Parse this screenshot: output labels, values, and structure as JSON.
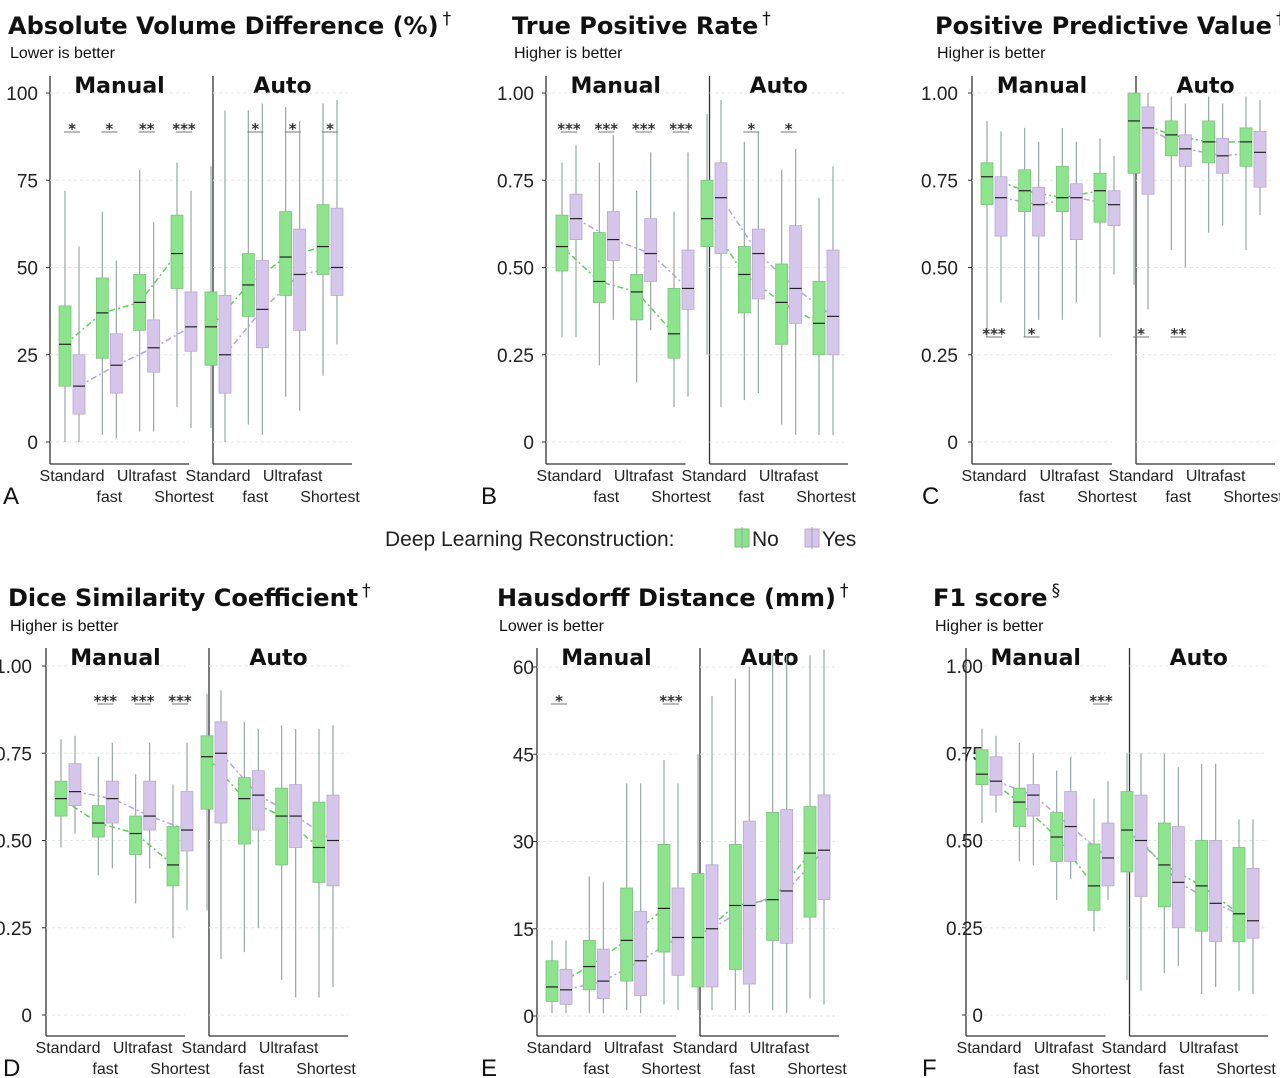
{
  "legend": {
    "title": "Deep Learning Reconstruction:",
    "items": [
      "No",
      "Yes"
    ]
  },
  "colors": {
    "no": "#8ce58c",
    "yes": "#d7c6ec",
    "no_line": "#5fcf5f",
    "yes_line": "#b9a3dd",
    "whisker": "#9aa7a7",
    "grid": "#e6e6e6"
  },
  "chart_data": [
    {
      "panel": "A",
      "type": "box",
      "title": "Absolute Volume Difference (%)",
      "title_mark": "†",
      "subtitle": "Lower is better",
      "groups": [
        "Manual",
        "Auto"
      ],
      "categories": [
        "Standard",
        "fast",
        "Ultrafast",
        "Shortest"
      ],
      "category_rows": [
        0,
        1,
        0,
        1
      ],
      "ylim": [
        0,
        100
      ],
      "yticks": [
        0,
        25,
        50,
        75,
        100
      ],
      "ytick_labels": [
        "0",
        "25",
        "50",
        "75",
        "100"
      ],
      "series": [
        {
          "name": "No",
          "boxes": [
            [
              0,
              16,
              28,
              39,
              72
            ],
            [
              2,
              24,
              37,
              47,
              66
            ],
            [
              3,
              32,
              40,
              48,
              78
            ],
            [
              10,
              44,
              54,
              65,
              80
            ],
            [
              4,
              22,
              33,
              43,
              79
            ],
            [
              5,
              36,
              45,
              54,
              95
            ],
            [
              13,
              42,
              53,
              66,
              96
            ],
            [
              19,
              48,
              56,
              68,
              97
            ]
          ]
        },
        {
          "name": "Yes",
          "boxes": [
            [
              0,
              8,
              16,
              25,
              56
            ],
            [
              1,
              14,
              22,
              31,
              52
            ],
            [
              3,
              20,
              27,
              35,
              63
            ],
            [
              4,
              26,
              33,
              43,
              72
            ],
            [
              0,
              14,
              25,
              42,
              95
            ],
            [
              2,
              27,
              38,
              52,
              97
            ],
            [
              9,
              32,
              48,
              61,
              92
            ],
            [
              28,
              42,
              50,
              67,
              98
            ]
          ]
        }
      ],
      "significance": [
        "*",
        "*",
        "**",
        "***",
        "",
        "*",
        "*",
        "*"
      ]
    },
    {
      "panel": "B",
      "type": "box",
      "title": "True Positive Rate",
      "title_mark": "†",
      "subtitle": "Higher is better",
      "groups": [
        "Manual",
        "Auto"
      ],
      "categories": [
        "Standard",
        "fast",
        "Ultrafast",
        "Shortest"
      ],
      "category_rows": [
        0,
        1,
        0,
        1
      ],
      "ylim": [
        0,
        1
      ],
      "yticks": [
        0,
        0.25,
        0.5,
        0.75,
        1
      ],
      "ytick_labels": [
        "0",
        "0.25",
        "0.50",
        "0.75",
        "1.00"
      ],
      "series": [
        {
          "name": "No",
          "boxes": [
            [
              0.3,
              0.49,
              0.56,
              0.65,
              0.8
            ],
            [
              0.22,
              0.4,
              0.46,
              0.6,
              0.8
            ],
            [
              0.17,
              0.35,
              0.43,
              0.48,
              0.72
            ],
            [
              0.1,
              0.24,
              0.31,
              0.44,
              0.66
            ],
            [
              0.25,
              0.56,
              0.64,
              0.75,
              0.94
            ],
            [
              0.12,
              0.37,
              0.48,
              0.56,
              0.86
            ],
            [
              0.05,
              0.28,
              0.4,
              0.51,
              0.78
            ],
            [
              0.02,
              0.25,
              0.34,
              0.46,
              0.7
            ]
          ]
        },
        {
          "name": "Yes",
          "boxes": [
            [
              0.3,
              0.58,
              0.64,
              0.71,
              0.85
            ],
            [
              0.35,
              0.52,
              0.58,
              0.66,
              0.88
            ],
            [
              0.32,
              0.46,
              0.54,
              0.64,
              0.83
            ],
            [
              0.13,
              0.38,
              0.44,
              0.55,
              0.83
            ],
            [
              0.1,
              0.54,
              0.7,
              0.8,
              0.98
            ],
            [
              0.14,
              0.41,
              0.54,
              0.61,
              0.89
            ],
            [
              0.02,
              0.34,
              0.44,
              0.62,
              0.84
            ],
            [
              0.02,
              0.25,
              0.36,
              0.55,
              0.79
            ]
          ]
        }
      ],
      "significance": [
        "***",
        "***",
        "***",
        "***",
        "",
        "*",
        "*",
        ""
      ]
    },
    {
      "panel": "C",
      "type": "box",
      "title": "Positive Predictive Value",
      "title_mark": "†",
      "subtitle": "Higher is better",
      "groups": [
        "Manual",
        "Auto"
      ],
      "categories": [
        "Standard",
        "fast",
        "Ultrafast",
        "Shortest"
      ],
      "category_rows": [
        0,
        1,
        0,
        1
      ],
      "ylim": [
        0,
        1
      ],
      "yticks": [
        0,
        0.25,
        0.5,
        0.75,
        1
      ],
      "ytick_labels": [
        "0",
        "0.25",
        "0.50",
        "0.75",
        "1.00"
      ],
      "series": [
        {
          "name": "No",
          "boxes": [
            [
              0.3,
              0.68,
              0.76,
              0.8,
              0.92
            ],
            [
              0.3,
              0.66,
              0.72,
              0.78,
              0.9
            ],
            [
              0.35,
              0.66,
              0.7,
              0.79,
              0.9
            ],
            [
              0.3,
              0.63,
              0.72,
              0.77,
              0.87
            ],
            [
              0.45,
              0.77,
              0.92,
              1.0,
              1.0
            ],
            [
              0.55,
              0.82,
              0.88,
              0.92,
              0.99
            ],
            [
              0.6,
              0.8,
              0.86,
              0.92,
              0.99
            ],
            [
              0.55,
              0.79,
              0.86,
              0.9,
              0.99
            ]
          ]
        },
        {
          "name": "Yes",
          "boxes": [
            [
              0.4,
              0.59,
              0.7,
              0.76,
              0.89
            ],
            [
              0.35,
              0.59,
              0.68,
              0.73,
              0.86
            ],
            [
              0.4,
              0.58,
              0.7,
              0.74,
              0.86
            ],
            [
              0.48,
              0.62,
              0.68,
              0.72,
              0.82
            ],
            [
              0.38,
              0.71,
              0.9,
              0.96,
              1.0
            ],
            [
              0.5,
              0.79,
              0.84,
              0.88,
              0.97
            ],
            [
              0.62,
              0.77,
              0.82,
              0.87,
              0.97
            ],
            [
              0.65,
              0.73,
              0.83,
              0.89,
              0.98
            ]
          ]
        }
      ],
      "significance": [
        "***",
        "*",
        "",
        "",
        "*",
        "**",
        "",
        ""
      ]
    },
    {
      "panel": "D",
      "type": "box",
      "title": "Dice Similarity Coefficient",
      "title_mark": "†",
      "subtitle": "Higher is better",
      "groups": [
        "Manual",
        "Auto"
      ],
      "categories": [
        "Standard",
        "fast",
        "Ultrafast",
        "Shortest"
      ],
      "category_rows": [
        0,
        1,
        0,
        1
      ],
      "ylim": [
        0,
        1
      ],
      "yticks": [
        0,
        0.25,
        0.5,
        0.75,
        1
      ],
      "ytick_labels": [
        "0",
        "0.25",
        "0.50",
        "0.75",
        "1.00"
      ],
      "series": [
        {
          "name": "No",
          "boxes": [
            [
              0.48,
              0.57,
              0.62,
              0.67,
              0.79
            ],
            [
              0.4,
              0.51,
              0.55,
              0.6,
              0.74
            ],
            [
              0.32,
              0.46,
              0.52,
              0.57,
              0.69
            ],
            [
              0.22,
              0.37,
              0.43,
              0.54,
              0.66
            ],
            [
              0.3,
              0.59,
              0.74,
              0.8,
              0.92
            ],
            [
              0.18,
              0.49,
              0.62,
              0.68,
              0.84
            ],
            [
              0.1,
              0.43,
              0.57,
              0.65,
              0.83
            ],
            [
              0.05,
              0.38,
              0.48,
              0.61,
              0.82
            ]
          ]
        },
        {
          "name": "Yes",
          "boxes": [
            [
              0.52,
              0.6,
              0.64,
              0.72,
              0.8
            ],
            [
              0.42,
              0.55,
              0.62,
              0.67,
              0.78
            ],
            [
              0.42,
              0.53,
              0.57,
              0.67,
              0.78
            ],
            [
              0.3,
              0.47,
              0.53,
              0.64,
              0.78
            ],
            [
              0.16,
              0.55,
              0.75,
              0.84,
              0.93
            ],
            [
              0.25,
              0.53,
              0.63,
              0.7,
              0.82
            ],
            [
              0.05,
              0.48,
              0.57,
              0.66,
              0.82
            ],
            [
              0.08,
              0.37,
              0.5,
              0.63,
              0.83
            ]
          ]
        }
      ],
      "significance": [
        "",
        "***",
        "***",
        "***",
        "",
        "",
        "",
        ""
      ]
    },
    {
      "panel": "E",
      "type": "box",
      "title": "Hausdorff Distance (mm)",
      "title_mark": "†",
      "subtitle": "Lower is better",
      "groups": [
        "Manual",
        "Auto"
      ],
      "categories": [
        "Standard",
        "fast",
        "Ultrafast",
        "Shortest"
      ],
      "category_rows": [
        0,
        1,
        0,
        1
      ],
      "ylim": [
        0,
        60
      ],
      "yticks": [
        0,
        15,
        30,
        45,
        60
      ],
      "ytick_labels": [
        "0",
        "15",
        "30",
        "45",
        "60"
      ],
      "series": [
        {
          "name": "No",
          "boxes": [
            [
              0.5,
              2.5,
              5,
              9.5,
              13
            ],
            [
              0.5,
              4.5,
              8.5,
              13,
              24
            ],
            [
              1,
              6,
              13,
              22,
              40
            ],
            [
              2,
              11,
              18.5,
              29.5,
              44
            ],
            [
              1,
              5,
              13.5,
              24.5,
              45
            ],
            [
              1,
              8,
              19,
              29.5,
              58
            ],
            [
              1,
              13,
              20,
              35,
              62
            ],
            [
              3,
              17,
              28,
              36,
              62
            ]
          ]
        },
        {
          "name": "Yes",
          "boxes": [
            [
              0.5,
              2,
              4.5,
              8,
              13
            ],
            [
              0.5,
              3,
              6,
              11.5,
              23
            ],
            [
              0.5,
              3.5,
              9.5,
              18,
              40
            ],
            [
              1,
              7,
              13.5,
              22,
              40
            ],
            [
              1,
              5,
              15,
              26,
              55
            ],
            [
              0.5,
              5.5,
              19,
              33.5,
              60
            ],
            [
              0.5,
              12.5,
              21.5,
              35.5,
              62
            ],
            [
              2,
              20,
              28.5,
              38,
              63
            ]
          ]
        }
      ],
      "significance": [
        "*",
        "",
        "",
        "***",
        "",
        "",
        "",
        ""
      ]
    },
    {
      "panel": "F",
      "type": "box",
      "title": "F1 score",
      "title_mark": "§",
      "subtitle": "Higher is better",
      "groups": [
        "Manual",
        "Auto"
      ],
      "categories": [
        "Standard",
        "fast",
        "Ultrafast",
        "Shortest"
      ],
      "category_rows": [
        0,
        1,
        0,
        1
      ],
      "ylim": [
        0,
        1
      ],
      "yticks": [
        0,
        0.25,
        0.5,
        0.75,
        1
      ],
      "ytick_labels": [
        "0",
        "0.25",
        "0.50",
        "0.75",
        "1.00"
      ],
      "series": [
        {
          "name": "No",
          "boxes": [
            [
              0.55,
              0.66,
              0.69,
              0.76,
              0.82
            ],
            [
              0.44,
              0.54,
              0.61,
              0.65,
              0.78
            ],
            [
              0.33,
              0.44,
              0.51,
              0.58,
              0.7
            ],
            [
              0.24,
              0.3,
              0.37,
              0.49,
              0.62
            ],
            [
              0.1,
              0.41,
              0.53,
              0.64,
              0.75
            ],
            [
              0.12,
              0.31,
              0.43,
              0.55,
              0.75
            ],
            [
              0.06,
              0.24,
              0.37,
              0.5,
              0.72
            ],
            [
              0.07,
              0.21,
              0.29,
              0.48,
              0.56
            ]
          ]
        },
        {
          "name": "Yes",
          "boxes": [
            [
              0.58,
              0.63,
              0.67,
              0.74,
              0.8
            ],
            [
              0.43,
              0.57,
              0.63,
              0.66,
              0.75
            ],
            [
              0.39,
              0.44,
              0.54,
              0.64,
              0.74
            ],
            [
              0.33,
              0.37,
              0.45,
              0.55,
              0.67
            ],
            [
              0.07,
              0.34,
              0.5,
              0.63,
              0.75
            ],
            [
              0.14,
              0.25,
              0.38,
              0.54,
              0.71
            ],
            [
              0.08,
              0.21,
              0.32,
              0.5,
              0.72
            ],
            [
              0.06,
              0.22,
              0.27,
              0.42,
              0.56
            ]
          ]
        }
      ],
      "significance": [
        "",
        "",
        "",
        "***",
        "",
        "",
        "",
        ""
      ]
    }
  ]
}
